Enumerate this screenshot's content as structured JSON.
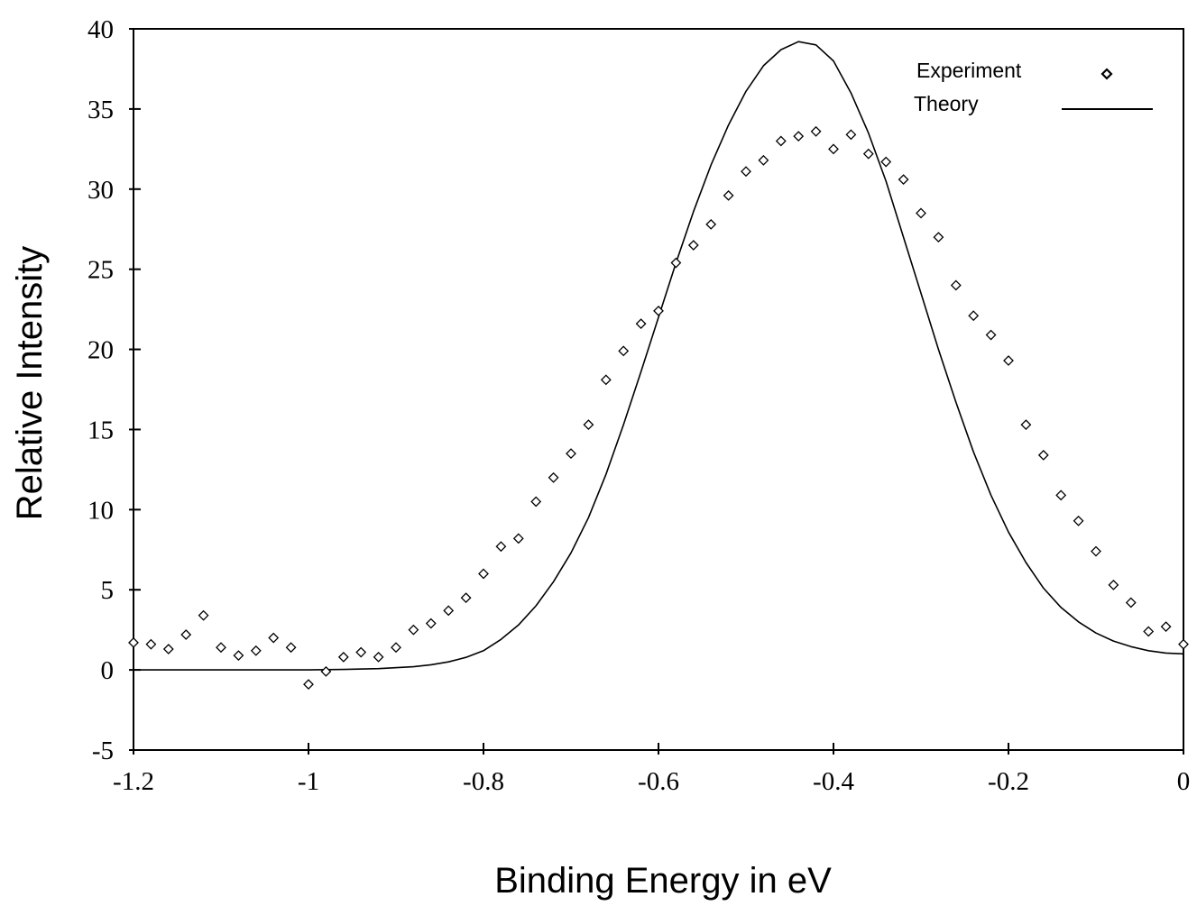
{
  "chart_data": {
    "type": "scatter",
    "title": "",
    "xlabel": "Binding Energy in eV",
    "ylabel": "Relative Intensity",
    "xlim": [
      -1.2,
      0
    ],
    "ylim": [
      -5,
      40
    ],
    "x_ticks": [
      -1.2,
      -1,
      -0.8,
      -0.6,
      -0.4,
      -0.2,
      0
    ],
    "x_tick_labels": [
      "-1.2",
      "-1",
      "-0.8",
      "-0.6",
      "-0.4",
      "-0.2",
      "0"
    ],
    "y_ticks": [
      -5,
      0,
      5,
      10,
      15,
      20,
      25,
      30,
      35,
      40
    ],
    "y_tick_labels": [
      "-5",
      "0",
      "5",
      "10",
      "15",
      "20",
      "25",
      "30",
      "35",
      "40"
    ],
    "grid": false,
    "legend": "top-right",
    "series": [
      {
        "name": "Experiment",
        "type": "scatter",
        "marker": "diamond",
        "x": [
          -1.2,
          -1.18,
          -1.16,
          -1.14,
          -1.12,
          -1.1,
          -1.08,
          -1.06,
          -1.04,
          -1.02,
          -1.0,
          -0.98,
          -0.96,
          -0.94,
          -0.92,
          -0.9,
          -0.88,
          -0.86,
          -0.84,
          -0.82,
          -0.8,
          -0.78,
          -0.76,
          -0.74,
          -0.72,
          -0.7,
          -0.68,
          -0.66,
          -0.64,
          -0.62,
          -0.6,
          -0.58,
          -0.56,
          -0.54,
          -0.52,
          -0.5,
          -0.48,
          -0.46,
          -0.44,
          -0.42,
          -0.4,
          -0.38,
          -0.36,
          -0.34,
          -0.32,
          -0.3,
          -0.28,
          -0.26,
          -0.24,
          -0.22,
          -0.2,
          -0.18,
          -0.16,
          -0.14,
          -0.12,
          -0.1,
          -0.08,
          -0.06,
          -0.04,
          -0.02,
          0.0
        ],
        "y": [
          1.7,
          1.6,
          1.3,
          2.2,
          3.4,
          1.4,
          0.9,
          1.2,
          2.0,
          1.4,
          -0.9,
          -0.1,
          0.8,
          1.1,
          0.8,
          1.4,
          2.5,
          2.9,
          3.7,
          4.5,
          6.0,
          7.7,
          8.2,
          10.5,
          12.0,
          13.5,
          15.3,
          18.1,
          19.9,
          21.6,
          22.4,
          25.4,
          26.5,
          27.8,
          29.6,
          31.1,
          31.8,
          33.0,
          33.3,
          33.6,
          32.5,
          33.4,
          32.2,
          31.7,
          30.6,
          28.5,
          27.0,
          24.0,
          22.1,
          20.9,
          19.3,
          15.3,
          13.4,
          10.9,
          9.3,
          7.4,
          5.3,
          4.2,
          2.4,
          2.7,
          1.6
        ]
      },
      {
        "name": "Theory",
        "type": "line",
        "x": [
          -1.2,
          -1.15,
          -1.1,
          -1.05,
          -1.0,
          -0.96,
          -0.92,
          -0.88,
          -0.86,
          -0.84,
          -0.82,
          -0.8,
          -0.78,
          -0.76,
          -0.74,
          -0.72,
          -0.7,
          -0.68,
          -0.66,
          -0.64,
          -0.62,
          -0.6,
          -0.58,
          -0.56,
          -0.54,
          -0.52,
          -0.5,
          -0.48,
          -0.46,
          -0.44,
          -0.42,
          -0.4,
          -0.38,
          -0.36,
          -0.34,
          -0.32,
          -0.3,
          -0.28,
          -0.26,
          -0.24,
          -0.22,
          -0.2,
          -0.18,
          -0.16,
          -0.14,
          -0.12,
          -0.1,
          -0.08,
          -0.06,
          -0.04,
          -0.02,
          0.0
        ],
        "y": [
          0.0,
          0.0,
          0.0,
          0.0,
          0.0,
          0.03,
          0.08,
          0.2,
          0.32,
          0.5,
          0.78,
          1.2,
          1.9,
          2.8,
          4.0,
          5.5,
          7.3,
          9.5,
          12.2,
          15.3,
          18.6,
          22.0,
          25.4,
          28.6,
          31.5,
          34.0,
          36.1,
          37.7,
          38.7,
          39.2,
          39.0,
          38.0,
          36.0,
          33.5,
          30.5,
          27.0,
          23.5,
          20.0,
          16.7,
          13.6,
          10.9,
          8.6,
          6.7,
          5.1,
          3.9,
          3.0,
          2.3,
          1.8,
          1.45,
          1.2,
          1.05,
          1.0
        ]
      }
    ]
  }
}
